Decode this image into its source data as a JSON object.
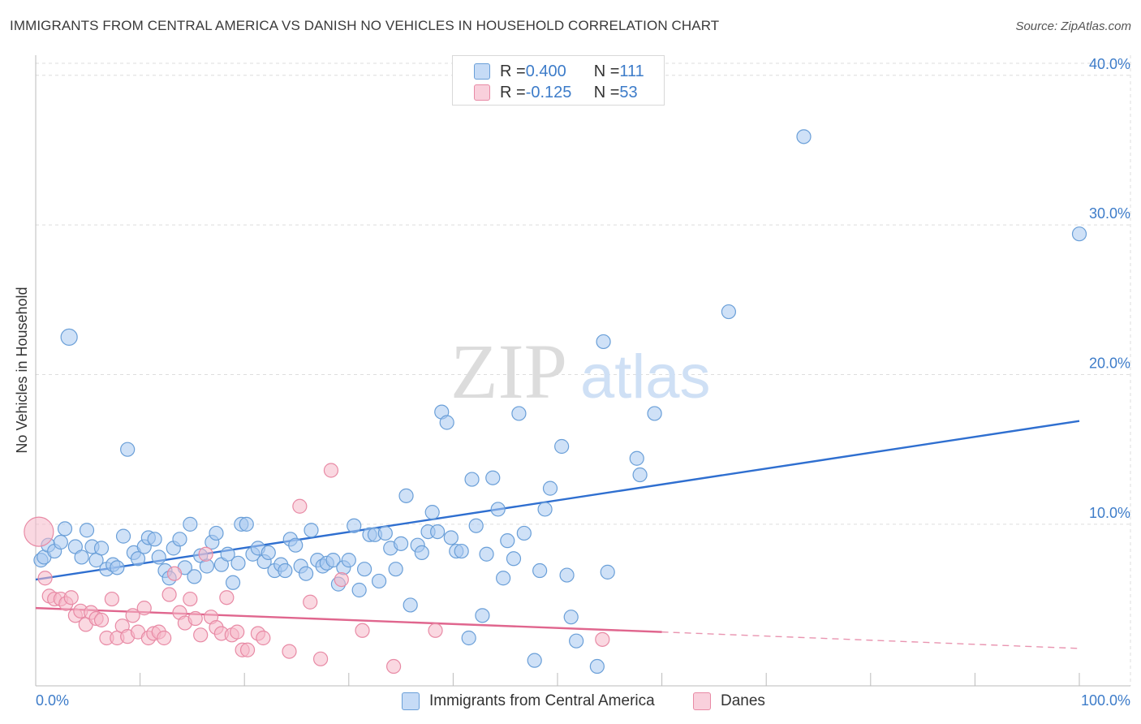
{
  "header": {
    "title": "IMMIGRANTS FROM CENTRAL AMERICA VS DANISH NO VEHICLES IN HOUSEHOLD CORRELATION CHART",
    "source": "Source: ZipAtlas.com"
  },
  "watermark": {
    "zip": "ZIP",
    "atlas": "atlas"
  },
  "stats_legend": [
    {
      "r_label": "R = ",
      "r_value": "0.400",
      "n_label": "N = ",
      "n_value": "111",
      "color": "#a8c8f0"
    },
    {
      "r_label": "R = ",
      "r_value": "-0.125",
      "n_label": "N = ",
      "n_value": "53",
      "color": "#f5b8c8"
    }
  ],
  "colors": {
    "blue_fill": "#a8c8f0",
    "blue_stroke": "#6a9fd8",
    "blue_line": "#2f6fd0",
    "pink_fill": "#f5b8c8",
    "pink_stroke": "#e88aa5",
    "pink_line": "#e0668e",
    "axis_text": "#3d7cc9",
    "grid": "#dddddd"
  },
  "chart_data": {
    "type": "scatter",
    "title": "IMMIGRANTS FROM CENTRAL AMERICA VS DANISH NO VEHICLES IN HOUSEHOLD CORRELATION CHART",
    "xlabel": "",
    "ylabel": "No Vehicles in Household",
    "xlim": [
      0,
      100
    ],
    "ylim": [
      -0.8,
      40.8
    ],
    "x_tick_labels": [
      "0.0%",
      "100.0%"
    ],
    "y_ticks": [
      10,
      20,
      30,
      40
    ],
    "y_tick_labels": [
      "10.0%",
      "20.0%",
      "30.0%",
      "40.0%"
    ],
    "grid": true,
    "legend_position": "top-center",
    "series": [
      {
        "name": "Immigrants from Central America",
        "color": "#a8c8f0",
        "trend": {
          "x": [
            0,
            100
          ],
          "y": [
            6.3,
            16.9
          ]
        },
        "points": [
          [
            0.5,
            7.6
          ],
          [
            0.8,
            7.8
          ],
          [
            1.2,
            8.6
          ],
          [
            1.8,
            8.2
          ],
          [
            2.4,
            8.8
          ],
          [
            2.8,
            9.7
          ],
          [
            3.2,
            22.5
          ],
          [
            3.8,
            8.5
          ],
          [
            4.4,
            7.8
          ],
          [
            4.9,
            9.6
          ],
          [
            5.4,
            8.5
          ],
          [
            5.8,
            7.6
          ],
          [
            6.3,
            8.4
          ],
          [
            6.8,
            7.0
          ],
          [
            7.4,
            7.3
          ],
          [
            7.8,
            7.1
          ],
          [
            8.4,
            9.2
          ],
          [
            8.8,
            15.0
          ],
          [
            9.4,
            8.1
          ],
          [
            9.8,
            7.7
          ],
          [
            10.4,
            8.5
          ],
          [
            10.8,
            9.1
          ],
          [
            11.4,
            9.0
          ],
          [
            11.8,
            7.8
          ],
          [
            12.4,
            6.9
          ],
          [
            12.8,
            6.4
          ],
          [
            13.2,
            8.4
          ],
          [
            13.8,
            9.0
          ],
          [
            14.3,
            7.1
          ],
          [
            14.8,
            10.0
          ],
          [
            15.2,
            6.5
          ],
          [
            15.8,
            7.9
          ],
          [
            16.4,
            7.2
          ],
          [
            16.9,
            8.8
          ],
          [
            17.3,
            9.4
          ],
          [
            17.8,
            7.3
          ],
          [
            18.4,
            8.0
          ],
          [
            18.9,
            6.1
          ],
          [
            19.4,
            7.4
          ],
          [
            19.7,
            10.0
          ],
          [
            20.2,
            10.0
          ],
          [
            20.8,
            8.0
          ],
          [
            21.3,
            8.4
          ],
          [
            21.9,
            7.5
          ],
          [
            22.3,
            8.1
          ],
          [
            22.9,
            6.9
          ],
          [
            23.5,
            7.3
          ],
          [
            23.9,
            6.9
          ],
          [
            24.4,
            9.0
          ],
          [
            24.9,
            8.6
          ],
          [
            25.4,
            7.2
          ],
          [
            25.9,
            6.7
          ],
          [
            26.4,
            9.6
          ],
          [
            27.0,
            7.6
          ],
          [
            27.5,
            7.2
          ],
          [
            27.9,
            7.4
          ],
          [
            28.5,
            7.6
          ],
          [
            29.0,
            6.0
          ],
          [
            29.5,
            7.1
          ],
          [
            30.0,
            7.6
          ],
          [
            30.5,
            9.9
          ],
          [
            31.0,
            5.6
          ],
          [
            31.5,
            7.0
          ],
          [
            32.0,
            9.3
          ],
          [
            32.5,
            9.3
          ],
          [
            32.9,
            6.2
          ],
          [
            33.5,
            9.4
          ],
          [
            34.0,
            8.4
          ],
          [
            34.5,
            7.0
          ],
          [
            35.0,
            8.7
          ],
          [
            35.5,
            11.9
          ],
          [
            35.9,
            4.6
          ],
          [
            36.6,
            8.6
          ],
          [
            37.0,
            8.1
          ],
          [
            37.6,
            9.5
          ],
          [
            38.0,
            10.8
          ],
          [
            38.5,
            9.5
          ],
          [
            38.9,
            17.5
          ],
          [
            39.4,
            16.8
          ],
          [
            39.8,
            9.1
          ],
          [
            40.3,
            8.2
          ],
          [
            40.8,
            8.2
          ],
          [
            41.5,
            2.4
          ],
          [
            41.8,
            13.0
          ],
          [
            42.2,
            9.9
          ],
          [
            42.8,
            3.9
          ],
          [
            43.2,
            8.0
          ],
          [
            43.8,
            13.1
          ],
          [
            44.3,
            11.0
          ],
          [
            44.8,
            6.4
          ],
          [
            45.2,
            8.9
          ],
          [
            45.8,
            7.7
          ],
          [
            46.3,
            17.4
          ],
          [
            46.8,
            9.4
          ],
          [
            47.8,
            0.9
          ],
          [
            48.3,
            6.9
          ],
          [
            48.8,
            11.0
          ],
          [
            49.3,
            12.4
          ],
          [
            50.4,
            15.2
          ],
          [
            50.9,
            6.6
          ],
          [
            51.3,
            3.8
          ],
          [
            51.8,
            2.2
          ],
          [
            53.8,
            0.5
          ],
          [
            54.4,
            22.2
          ],
          [
            54.8,
            6.8
          ],
          [
            57.6,
            14.4
          ],
          [
            57.9,
            13.3
          ],
          [
            59.3,
            17.4
          ],
          [
            66.4,
            24.2
          ],
          [
            73.6,
            35.9
          ],
          [
            100.0,
            29.4
          ]
        ]
      },
      {
        "name": "Danes",
        "color": "#f5b8c8",
        "trend": {
          "x": [
            0,
            60
          ],
          "y": [
            4.4,
            2.8
          ]
        },
        "trend_dashed": {
          "x": [
            60,
            100
          ],
          "y": [
            2.8,
            1.7
          ]
        },
        "points": [
          [
            0.3,
            9.5
          ],
          [
            0.9,
            6.4
          ],
          [
            1.3,
            5.2
          ],
          [
            1.8,
            5.0
          ],
          [
            2.4,
            5.0
          ],
          [
            2.9,
            4.7
          ],
          [
            3.4,
            5.1
          ],
          [
            3.8,
            3.9
          ],
          [
            4.3,
            4.2
          ],
          [
            4.8,
            3.3
          ],
          [
            5.3,
            4.1
          ],
          [
            5.8,
            3.7
          ],
          [
            6.3,
            3.6
          ],
          [
            6.8,
            2.4
          ],
          [
            7.3,
            5.0
          ],
          [
            7.8,
            2.4
          ],
          [
            8.3,
            3.2
          ],
          [
            8.8,
            2.5
          ],
          [
            9.3,
            3.9
          ],
          [
            9.8,
            2.8
          ],
          [
            10.4,
            4.4
          ],
          [
            10.8,
            2.4
          ],
          [
            11.3,
            2.7
          ],
          [
            11.8,
            2.8
          ],
          [
            12.3,
            2.4
          ],
          [
            12.8,
            5.3
          ],
          [
            13.3,
            6.7
          ],
          [
            13.8,
            4.1
          ],
          [
            14.3,
            3.4
          ],
          [
            14.8,
            5.0
          ],
          [
            15.3,
            3.7
          ],
          [
            15.8,
            2.6
          ],
          [
            16.3,
            8.0
          ],
          [
            16.8,
            3.8
          ],
          [
            17.3,
            3.1
          ],
          [
            17.8,
            2.7
          ],
          [
            18.3,
            5.1
          ],
          [
            18.8,
            2.6
          ],
          [
            19.3,
            2.8
          ],
          [
            19.8,
            1.6
          ],
          [
            20.3,
            1.6
          ],
          [
            21.3,
            2.7
          ],
          [
            21.8,
            2.4
          ],
          [
            24.3,
            1.5
          ],
          [
            25.3,
            11.2
          ],
          [
            26.3,
            4.8
          ],
          [
            27.3,
            1.0
          ],
          [
            28.3,
            13.6
          ],
          [
            29.3,
            6.3
          ],
          [
            31.3,
            2.9
          ],
          [
            34.3,
            0.5
          ],
          [
            38.3,
            2.9
          ],
          [
            54.3,
            2.3
          ]
        ]
      }
    ]
  }
}
